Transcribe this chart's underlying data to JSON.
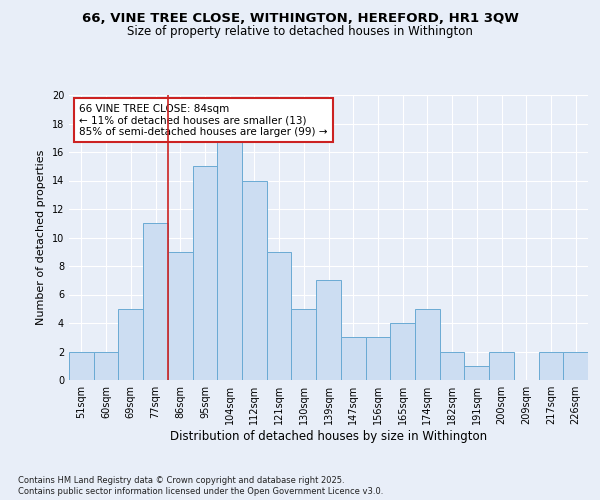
{
  "title_line1": "66, VINE TREE CLOSE, WITHINGTON, HEREFORD, HR1 3QW",
  "title_line2": "Size of property relative to detached houses in Withington",
  "xlabel": "Distribution of detached houses by size in Withington",
  "ylabel": "Number of detached properties",
  "bins": [
    "51sqm",
    "60sqm",
    "69sqm",
    "77sqm",
    "86sqm",
    "95sqm",
    "104sqm",
    "112sqm",
    "121sqm",
    "130sqm",
    "139sqm",
    "147sqm",
    "156sqm",
    "165sqm",
    "174sqm",
    "182sqm",
    "191sqm",
    "200sqm",
    "209sqm",
    "217sqm",
    "226sqm"
  ],
  "values": [
    2,
    2,
    5,
    11,
    9,
    15,
    17,
    14,
    9,
    5,
    7,
    3,
    3,
    4,
    5,
    2,
    1,
    2,
    0,
    2,
    2
  ],
  "bar_color": "#ccddf2",
  "bar_edge_color": "#6aaad4",
  "red_line_bin_index": 4,
  "red_line_color": "#cc2222",
  "annotation_text": "66 VINE TREE CLOSE: 84sqm\n← 11% of detached houses are smaller (13)\n85% of semi-detached houses are larger (99) →",
  "annotation_box_color": "#ffffff",
  "annotation_box_edge": "#cc2222",
  "ylim": [
    0,
    20
  ],
  "yticks": [
    0,
    2,
    4,
    6,
    8,
    10,
    12,
    14,
    16,
    18,
    20
  ],
  "footer_line1": "Contains HM Land Registry data © Crown copyright and database right 2025.",
  "footer_line2": "Contains public sector information licensed under the Open Government Licence v3.0.",
  "bg_color": "#e8eef8",
  "plot_bg_color": "#e8eef8",
  "grid_color": "#ffffff",
  "title_fontsize": 9.5,
  "subtitle_fontsize": 8.5,
  "tick_fontsize": 7,
  "ylabel_fontsize": 8,
  "xlabel_fontsize": 8.5,
  "footer_fontsize": 6,
  "annotation_fontsize": 7.5
}
